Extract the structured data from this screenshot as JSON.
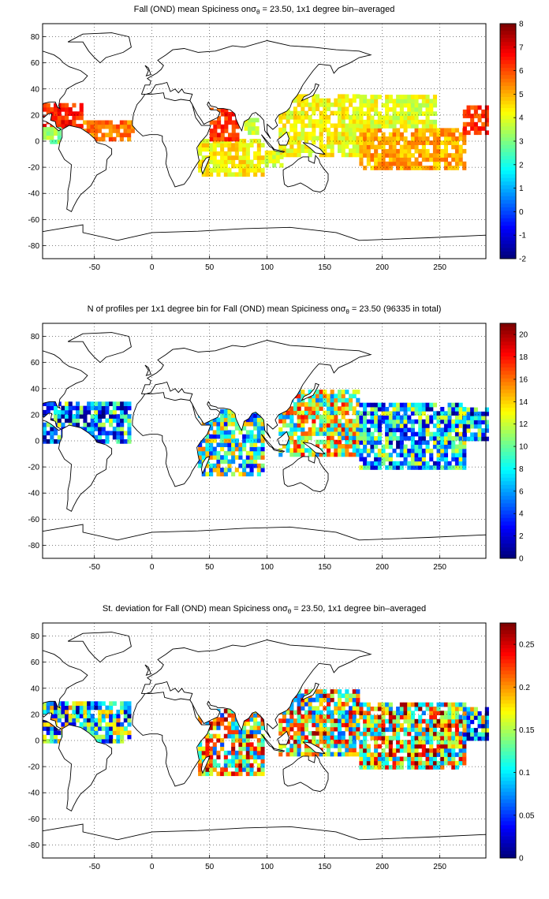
{
  "panels": [
    {
      "title_prefix": "Fall (OND) mean Spiciness on",
      "sigma_symbol": "σ",
      "sigma_sub": "θ",
      "title_suffix": " = 23.50, 1x1 degree bin–averaged",
      "colorbar": {
        "ticks": [
          "8",
          "7",
          "6",
          "5",
          "4",
          "3",
          "2",
          "1",
          "0",
          "-1",
          "-2"
        ],
        "min": -2,
        "max": 8,
        "colormap": "jet"
      }
    },
    {
      "title_prefix": "N of profiles per 1x1 degree bin for Fall (OND) mean Spiciness on",
      "sigma_symbol": "σ",
      "sigma_sub": "θ",
      "title_suffix": " = 23.50 (96335 in total)",
      "colorbar": {
        "ticks": [
          "20",
          "18",
          "16",
          "14",
          "12",
          "10",
          "8",
          "6",
          "4",
          "2",
          "0"
        ],
        "min": 0,
        "max": 21,
        "colormap": "jet"
      }
    },
    {
      "title_prefix": "St. deviation for Fall (OND) mean Spiciness on",
      "sigma_symbol": "σ",
      "sigma_sub": "θ",
      "title_suffix": " = 23.50, 1x1 degree bin–averaged",
      "colorbar": {
        "ticks": [
          "0.25",
          "0.2",
          "0.15",
          "0.1",
          "0.05",
          "0"
        ],
        "min": 0,
        "max": 0.275,
        "colormap": "jet"
      }
    }
  ],
  "axes": {
    "x_ticks": [
      "-50",
      "0",
      "50",
      "100",
      "150",
      "200",
      "250"
    ],
    "y_ticks": [
      "80",
      "60",
      "40",
      "20",
      "0",
      "-20",
      "-40",
      "-60",
      "-80"
    ],
    "xlim": [
      -95,
      290
    ],
    "ylim": [
      -90,
      90
    ],
    "grid": true,
    "grid_style": "dotted"
  },
  "colors": {
    "land_outline": "#000000",
    "background": "#ffffff",
    "grid": "#000000"
  }
}
